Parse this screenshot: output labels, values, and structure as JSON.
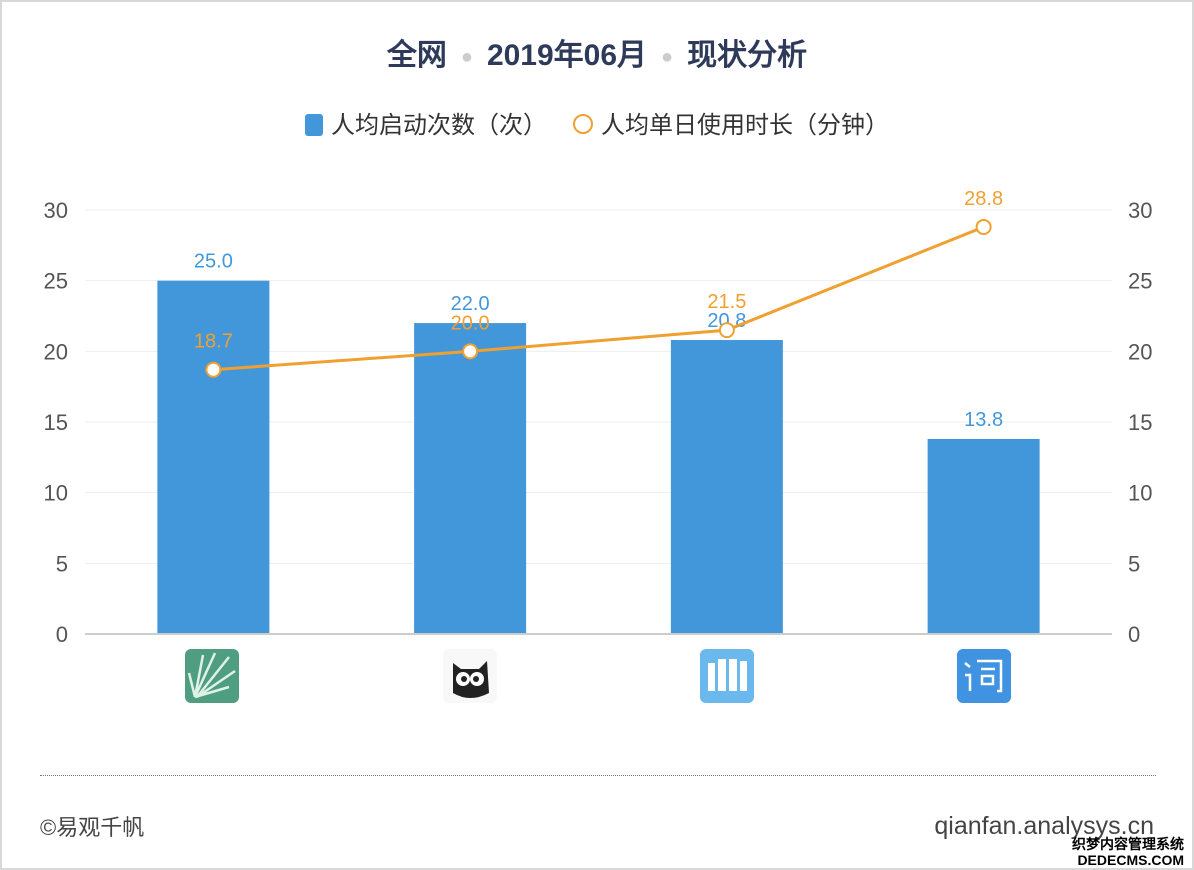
{
  "title": {
    "part1": "全网",
    "part2": "2019年06月",
    "part3": "现状分析"
  },
  "footer": {
    "copyright": "©易观千帆",
    "site": "qianfan.analysys.cn",
    "watermark1": "织梦内容管理系统",
    "watermark2": "DEDECMS.COM"
  },
  "colors": {
    "bar": "#4297db",
    "line": "#f0a030"
  },
  "chart_data": {
    "type": "bar+line",
    "categories": [
      "app-icon-green-rays",
      "app-icon-owl",
      "app-icon-blue-books",
      "app-icon-ci-word"
    ],
    "series": [
      {
        "name": "人均启动次数（次）",
        "type": "bar",
        "axis": "left",
        "values": [
          25.0,
          22.0,
          20.8,
          13.8
        ]
      },
      {
        "name": "人均单日使用时长（分钟）",
        "type": "line",
        "axis": "right",
        "values": [
          18.7,
          20.0,
          21.5,
          28.8
        ]
      }
    ],
    "ylim": [
      0,
      30
    ],
    "y2lim": [
      0,
      30
    ],
    "yticks": [
      "0",
      "5",
      "10",
      "15",
      "20",
      "25",
      "30"
    ],
    "grid": true,
    "legend": "top"
  }
}
